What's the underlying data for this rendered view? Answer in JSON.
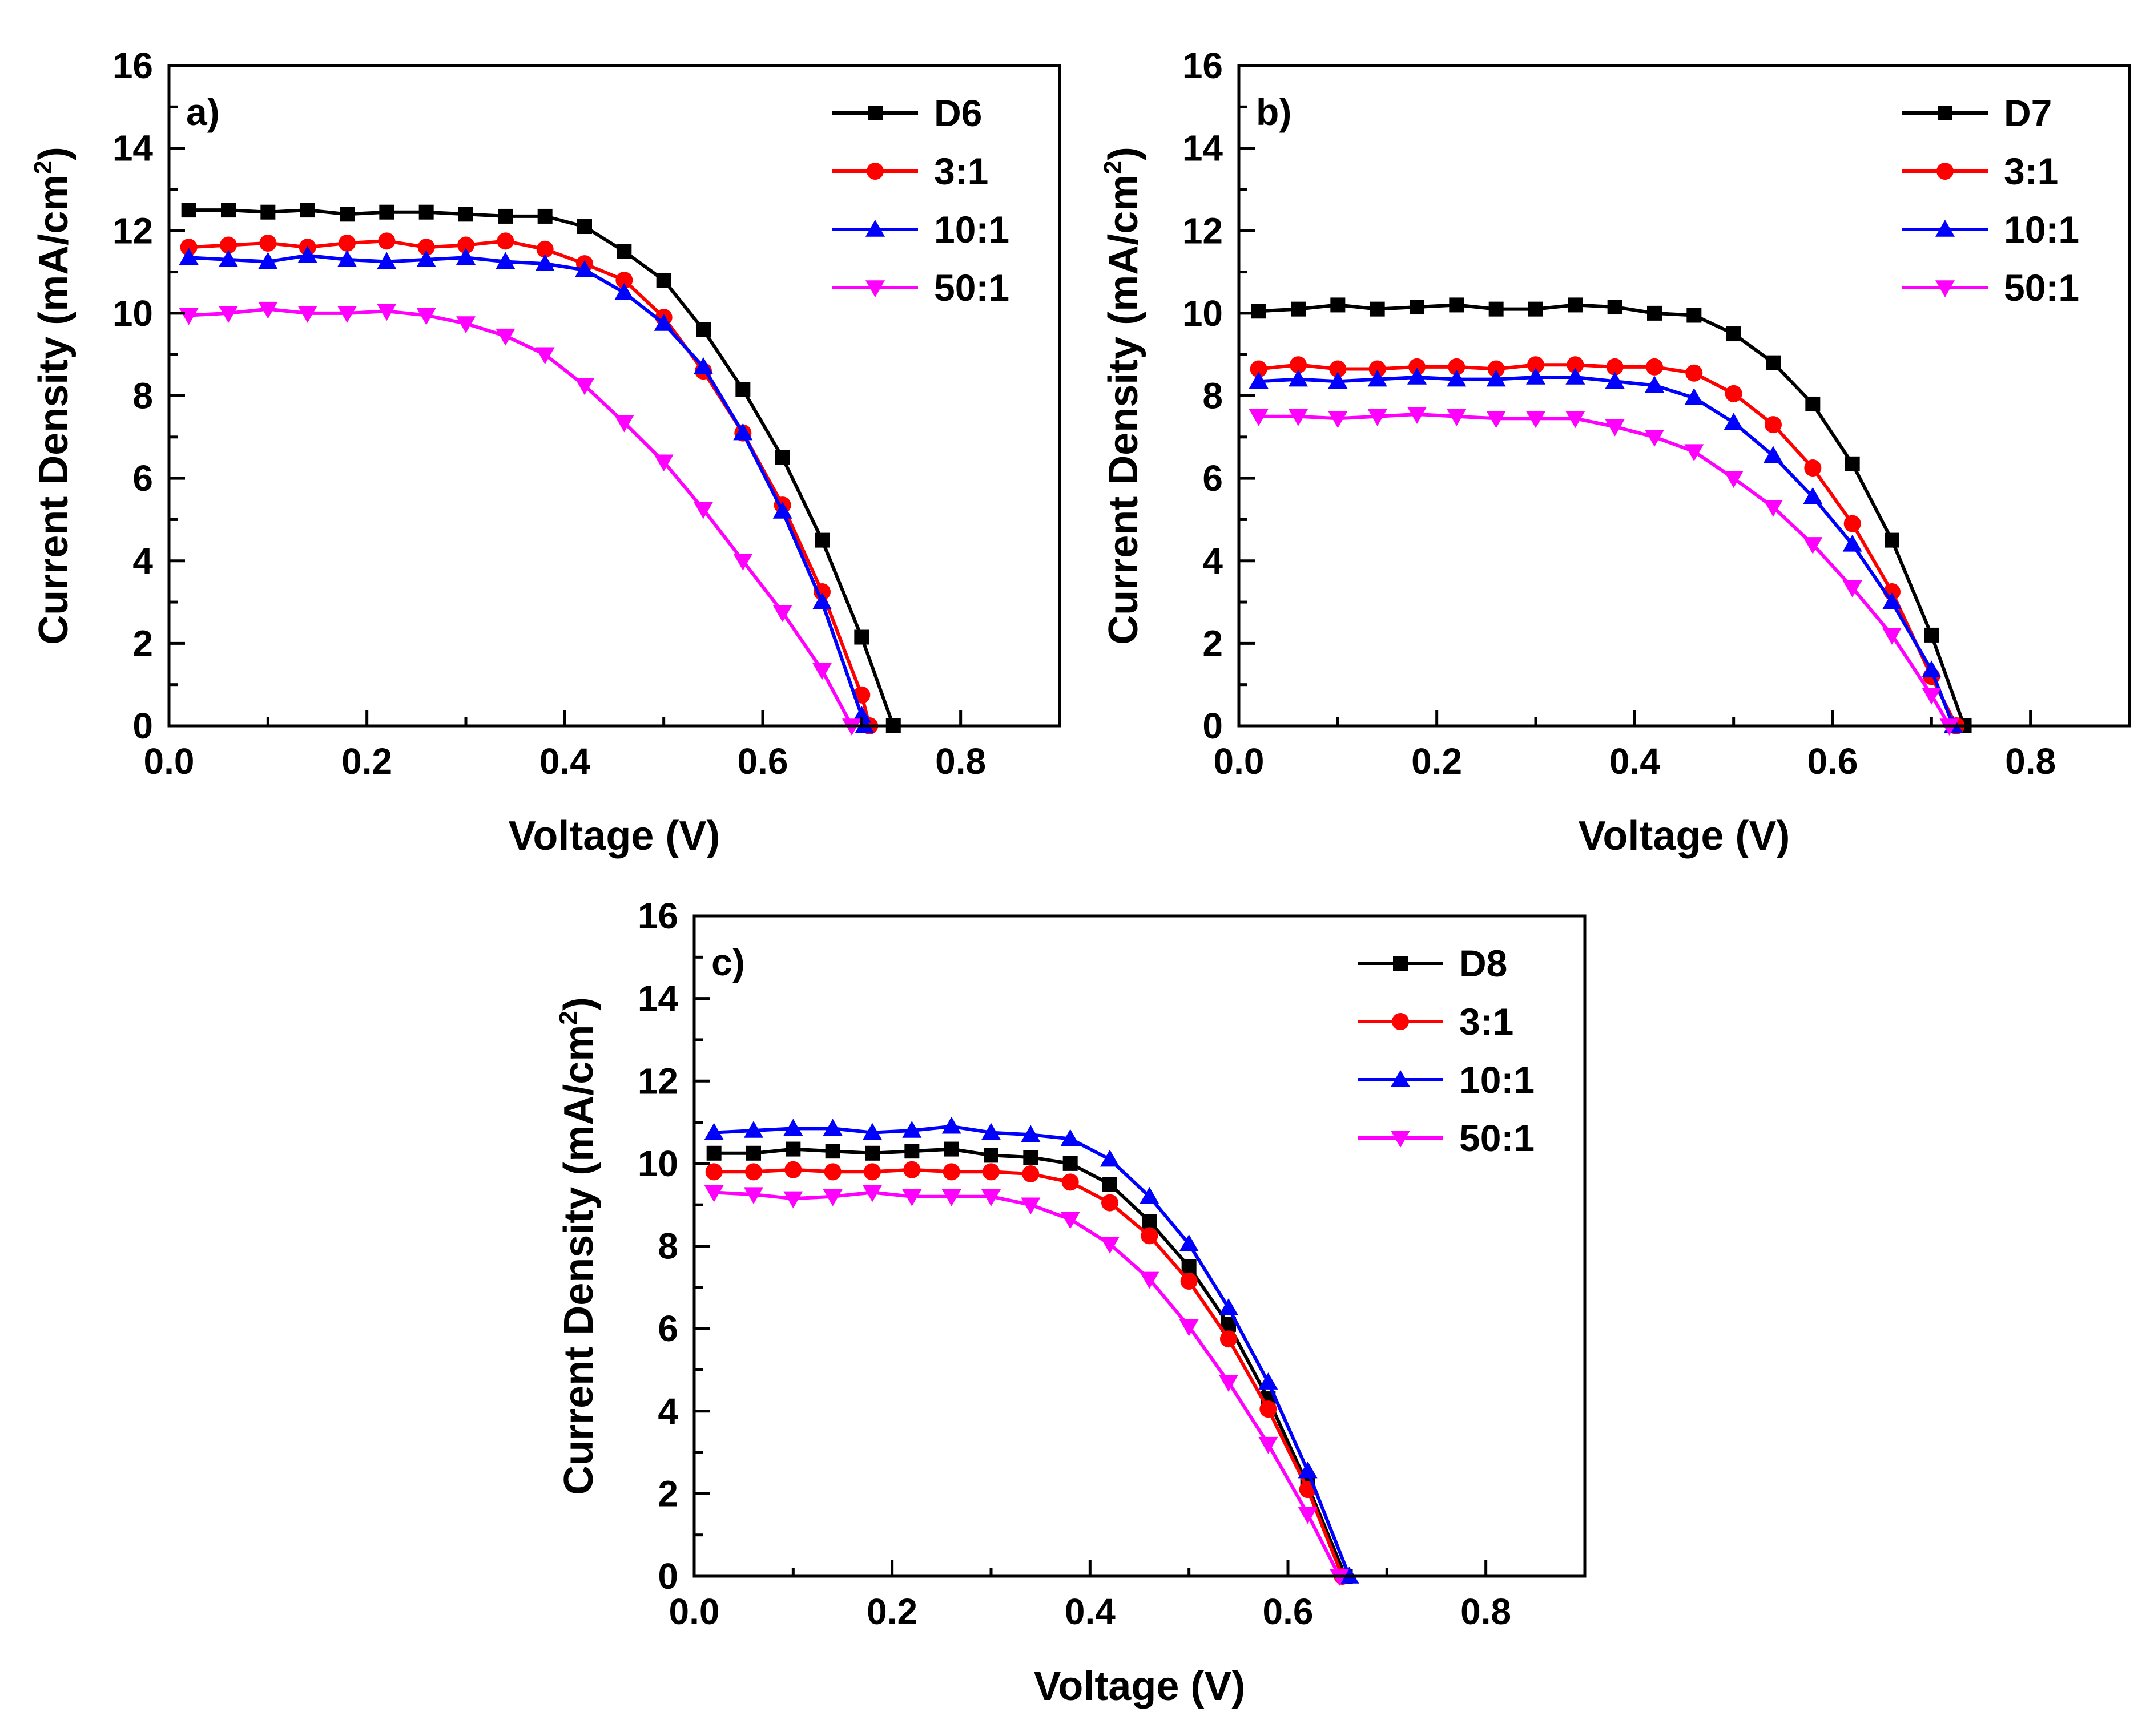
{
  "chart_data": [
    {
      "type": "line",
      "panel_label": "a)",
      "xlabel": "Voltage (V)",
      "ylabel_main": "Current Density (mA/cm",
      "ylabel_sup": "2",
      "ylabel_close": ")",
      "xlim": [
        0.0,
        0.9
      ],
      "ylim": [
        0,
        16
      ],
      "xticks": [
        0.0,
        0.2,
        0.4,
        0.6,
        0.8
      ],
      "xtick_labels": [
        "0.0",
        "0.2",
        "0.4",
        "0.6",
        "0.8"
      ],
      "yticks": [
        0,
        2,
        4,
        6,
        8,
        10,
        12,
        14,
        16
      ],
      "ytick_labels": [
        "0",
        "2",
        "4",
        "6",
        "8",
        "10",
        "12",
        "14",
        "16"
      ],
      "legend_position": "top-right",
      "series": [
        {
          "name": "D6",
          "color": "#000000",
          "marker": "square",
          "x": [
            0.02,
            0.06,
            0.1,
            0.14,
            0.18,
            0.22,
            0.26,
            0.3,
            0.34,
            0.38,
            0.42,
            0.46,
            0.5,
            0.54,
            0.58,
            0.62,
            0.66,
            0.7,
            0.732
          ],
          "y": [
            12.5,
            12.5,
            12.45,
            12.5,
            12.4,
            12.45,
            12.45,
            12.4,
            12.35,
            12.35,
            12.1,
            11.5,
            10.8,
            9.6,
            8.15,
            6.5,
            4.5,
            2.15,
            0
          ]
        },
        {
          "name": "3:1",
          "color": "#ff0000",
          "marker": "circle",
          "x": [
            0.02,
            0.06,
            0.1,
            0.14,
            0.18,
            0.22,
            0.26,
            0.3,
            0.34,
            0.38,
            0.42,
            0.46,
            0.5,
            0.54,
            0.58,
            0.62,
            0.66,
            0.7,
            0.708
          ],
          "y": [
            11.6,
            11.65,
            11.7,
            11.6,
            11.7,
            11.75,
            11.6,
            11.65,
            11.75,
            11.55,
            11.2,
            10.8,
            9.9,
            8.6,
            7.1,
            5.35,
            3.25,
            0.75,
            0
          ]
        },
        {
          "name": "10:1",
          "color": "#0000ff",
          "marker": "triangle-up",
          "x": [
            0.02,
            0.06,
            0.1,
            0.14,
            0.18,
            0.22,
            0.26,
            0.3,
            0.34,
            0.38,
            0.42,
            0.46,
            0.5,
            0.54,
            0.58,
            0.62,
            0.66,
            0.7,
            0.703
          ],
          "y": [
            11.35,
            11.3,
            11.25,
            11.4,
            11.3,
            11.25,
            11.3,
            11.35,
            11.25,
            11.2,
            11.05,
            10.5,
            9.75,
            8.7,
            7.1,
            5.2,
            3.0,
            0.25,
            0
          ]
        },
        {
          "name": "50:1",
          "color": "#ff00ff",
          "marker": "triangle-down",
          "x": [
            0.02,
            0.06,
            0.1,
            0.14,
            0.18,
            0.22,
            0.26,
            0.3,
            0.34,
            0.38,
            0.42,
            0.46,
            0.5,
            0.54,
            0.58,
            0.62,
            0.66,
            0.69
          ],
          "y": [
            9.95,
            10.0,
            10.1,
            10.0,
            10.0,
            10.05,
            9.95,
            9.75,
            9.45,
            9.0,
            8.25,
            7.35,
            6.4,
            5.25,
            4.0,
            2.75,
            1.35,
            0
          ]
        }
      ]
    },
    {
      "type": "line",
      "panel_label": "b)",
      "xlabel": "Voltage (V)",
      "ylabel_main": "Current Density (mA/cm",
      "ylabel_sup": "2",
      "ylabel_close": ")",
      "xlim": [
        0.0,
        0.9
      ],
      "ylim": [
        0,
        16
      ],
      "xticks": [
        0.0,
        0.2,
        0.4,
        0.6,
        0.8
      ],
      "xtick_labels": [
        "0.0",
        "0.2",
        "0.4",
        "0.6",
        "0.8"
      ],
      "yticks": [
        0,
        2,
        4,
        6,
        8,
        10,
        12,
        14,
        16
      ],
      "ytick_labels": [
        "0",
        "2",
        "4",
        "6",
        "8",
        "10",
        "12",
        "14",
        "16"
      ],
      "legend_position": "top-right",
      "series": [
        {
          "name": "D7",
          "color": "#000000",
          "marker": "square",
          "x": [
            0.02,
            0.06,
            0.1,
            0.14,
            0.18,
            0.22,
            0.26,
            0.3,
            0.34,
            0.38,
            0.42,
            0.46,
            0.5,
            0.54,
            0.58,
            0.62,
            0.66,
            0.7,
            0.733
          ],
          "y": [
            10.05,
            10.1,
            10.2,
            10.1,
            10.15,
            10.2,
            10.1,
            10.1,
            10.2,
            10.15,
            10.0,
            9.95,
            9.5,
            8.8,
            7.8,
            6.35,
            4.5,
            2.2,
            0
          ]
        },
        {
          "name": "3:1",
          "color": "#ff0000",
          "marker": "circle",
          "x": [
            0.02,
            0.06,
            0.1,
            0.14,
            0.18,
            0.22,
            0.26,
            0.3,
            0.34,
            0.38,
            0.42,
            0.46,
            0.5,
            0.54,
            0.58,
            0.62,
            0.66,
            0.7,
            0.725
          ],
          "y": [
            8.65,
            8.75,
            8.65,
            8.65,
            8.7,
            8.7,
            8.65,
            8.75,
            8.75,
            8.7,
            8.7,
            8.55,
            8.05,
            7.3,
            6.25,
            4.9,
            3.25,
            1.2,
            0
          ]
        },
        {
          "name": "10:1",
          "color": "#0000ff",
          "marker": "triangle-up",
          "x": [
            0.02,
            0.06,
            0.1,
            0.14,
            0.18,
            0.22,
            0.26,
            0.3,
            0.34,
            0.38,
            0.42,
            0.46,
            0.5,
            0.54,
            0.58,
            0.62,
            0.66,
            0.7,
            0.722
          ],
          "y": [
            8.35,
            8.4,
            8.35,
            8.4,
            8.45,
            8.4,
            8.4,
            8.45,
            8.45,
            8.35,
            8.25,
            7.95,
            7.35,
            6.55,
            5.55,
            4.4,
            3.0,
            1.35,
            0
          ]
        },
        {
          "name": "50:1",
          "color": "#ff00ff",
          "marker": "triangle-down",
          "x": [
            0.02,
            0.06,
            0.1,
            0.14,
            0.18,
            0.22,
            0.26,
            0.3,
            0.34,
            0.38,
            0.42,
            0.46,
            0.5,
            0.54,
            0.58,
            0.62,
            0.66,
            0.7,
            0.718
          ],
          "y": [
            7.5,
            7.5,
            7.45,
            7.5,
            7.55,
            7.5,
            7.45,
            7.45,
            7.45,
            7.25,
            7.0,
            6.65,
            6.0,
            5.3,
            4.4,
            3.35,
            2.2,
            0.75,
            0
          ]
        }
      ]
    },
    {
      "type": "line",
      "panel_label": "c)",
      "xlabel": "Voltage (V)",
      "ylabel_main": "Current Density (mA/cm",
      "ylabel_sup": "2",
      "ylabel_close": ")",
      "xlim": [
        0.0,
        0.9
      ],
      "ylim": [
        0,
        16
      ],
      "xticks": [
        0.0,
        0.2,
        0.4,
        0.6,
        0.8
      ],
      "xtick_labels": [
        "0.0",
        "0.2",
        "0.4",
        "0.6",
        "0.8"
      ],
      "yticks": [
        0,
        2,
        4,
        6,
        8,
        10,
        12,
        14,
        16
      ],
      "ytick_labels": [
        "0",
        "2",
        "4",
        "6",
        "8",
        "10",
        "12",
        "14",
        "16"
      ],
      "legend_position": "top-right",
      "series": [
        {
          "name": "D8",
          "color": "#000000",
          "marker": "square",
          "x": [
            0.02,
            0.06,
            0.1,
            0.14,
            0.18,
            0.22,
            0.26,
            0.3,
            0.34,
            0.38,
            0.42,
            0.46,
            0.5,
            0.54,
            0.58,
            0.62,
            0.658
          ],
          "y": [
            10.25,
            10.25,
            10.35,
            10.3,
            10.25,
            10.3,
            10.35,
            10.2,
            10.15,
            10.0,
            9.5,
            8.6,
            7.5,
            6.1,
            4.3,
            2.2,
            0
          ]
        },
        {
          "name": "3:1",
          "color": "#ff0000",
          "marker": "circle",
          "x": [
            0.02,
            0.06,
            0.1,
            0.14,
            0.18,
            0.22,
            0.26,
            0.3,
            0.34,
            0.38,
            0.42,
            0.46,
            0.5,
            0.54,
            0.58,
            0.62,
            0.655
          ],
          "y": [
            9.8,
            9.8,
            9.85,
            9.8,
            9.8,
            9.85,
            9.8,
            9.8,
            9.75,
            9.55,
            9.05,
            8.25,
            7.15,
            5.75,
            4.05,
            2.1,
            0
          ]
        },
        {
          "name": "10:1",
          "color": "#0000ff",
          "marker": "triangle-up",
          "x": [
            0.02,
            0.06,
            0.1,
            0.14,
            0.18,
            0.22,
            0.26,
            0.3,
            0.34,
            0.38,
            0.42,
            0.46,
            0.5,
            0.54,
            0.58,
            0.62,
            0.662
          ],
          "y": [
            10.75,
            10.8,
            10.85,
            10.85,
            10.75,
            10.8,
            10.9,
            10.75,
            10.7,
            10.6,
            10.1,
            9.2,
            8.05,
            6.5,
            4.7,
            2.55,
            0
          ]
        },
        {
          "name": "50:1",
          "color": "#ff00ff",
          "marker": "triangle-down",
          "x": [
            0.02,
            0.06,
            0.1,
            0.14,
            0.18,
            0.22,
            0.26,
            0.3,
            0.34,
            0.38,
            0.42,
            0.46,
            0.5,
            0.54,
            0.58,
            0.62,
            0.652
          ],
          "y": [
            9.3,
            9.25,
            9.15,
            9.2,
            9.3,
            9.2,
            9.2,
            9.2,
            9.0,
            8.65,
            8.05,
            7.2,
            6.05,
            4.7,
            3.2,
            1.5,
            0
          ]
        }
      ]
    }
  ]
}
